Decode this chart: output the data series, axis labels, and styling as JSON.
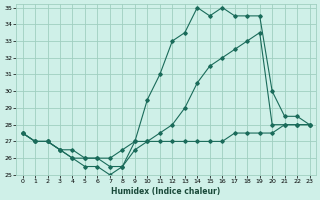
{
  "xlabel": "Humidex (Indice chaleur)",
  "xlim": [
    -0.5,
    23.5
  ],
  "ylim": [
    25,
    35.2
  ],
  "yticks": [
    25,
    26,
    27,
    28,
    29,
    30,
    31,
    32,
    33,
    34,
    35
  ],
  "xticks": [
    0,
    1,
    2,
    3,
    4,
    5,
    6,
    7,
    8,
    9,
    10,
    11,
    12,
    13,
    14,
    15,
    16,
    17,
    18,
    19,
    20,
    21,
    22,
    23
  ],
  "bg_color": "#cff0e8",
  "grid_color": "#a0cfc0",
  "line_color": "#1a6b5a",
  "line1_y": [
    27.5,
    27.0,
    27.0,
    26.5,
    26.0,
    25.5,
    25.5,
    25.0,
    25.5,
    27.0,
    29.5,
    31.0,
    33.0,
    33.5,
    35.0,
    34.5,
    35.0,
    34.5,
    34.5,
    34.5,
    30.0,
    28.5,
    28.5,
    28.0
  ],
  "line2_y": [
    27.5,
    27.0,
    27.0,
    26.5,
    26.0,
    26.0,
    26.0,
    26.0,
    26.5,
    27.0,
    27.0,
    27.5,
    28.0,
    29.0,
    30.5,
    31.5,
    32.0,
    32.5,
    33.0,
    33.5,
    28.0,
    28.0,
    28.0,
    28.0
  ],
  "line3_y": [
    27.5,
    27.0,
    27.0,
    26.5,
    26.5,
    26.0,
    26.0,
    25.5,
    25.5,
    26.5,
    27.0,
    27.0,
    27.0,
    27.0,
    27.0,
    27.0,
    27.0,
    27.5,
    27.5,
    27.5,
    27.5,
    28.0,
    28.0,
    28.0
  ]
}
